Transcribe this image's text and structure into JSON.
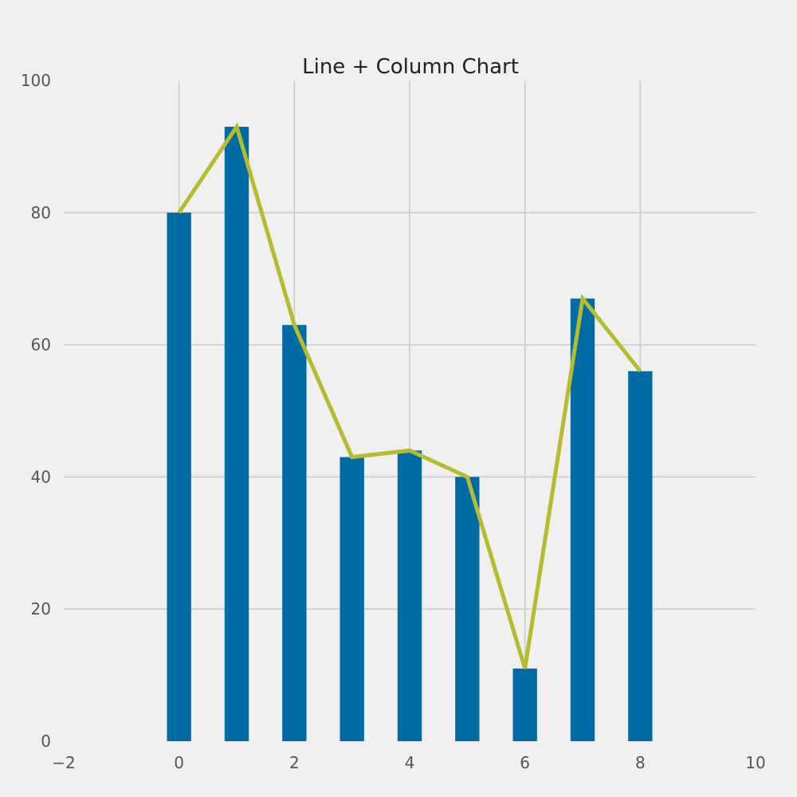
{
  "chart_data": {
    "type": "bar",
    "title": "Line + Column Chart",
    "xlabel": "",
    "ylabel": "",
    "x": [
      0,
      1,
      2,
      3,
      4,
      5,
      6,
      7,
      8
    ],
    "series": [
      {
        "type": "bar",
        "values": [
          80,
          93,
          63,
          43,
          44,
          40,
          11,
          67,
          56
        ],
        "color": "#006ba4"
      },
      {
        "type": "line",
        "values": [
          80,
          93,
          63,
          43,
          44,
          40,
          11,
          67,
          56
        ],
        "color": "#b5bd2c"
      }
    ],
    "xlim": [
      -2,
      10
    ],
    "ylim": [
      0,
      100
    ],
    "xticks": [
      "−2",
      "0",
      "2",
      "4",
      "6",
      "8",
      "10"
    ],
    "yticks": [
      "0",
      "20",
      "40",
      "60",
      "80",
      "100"
    ],
    "grid": true,
    "background": "#f0f0f0",
    "grid_color": "#cbcbcb"
  }
}
